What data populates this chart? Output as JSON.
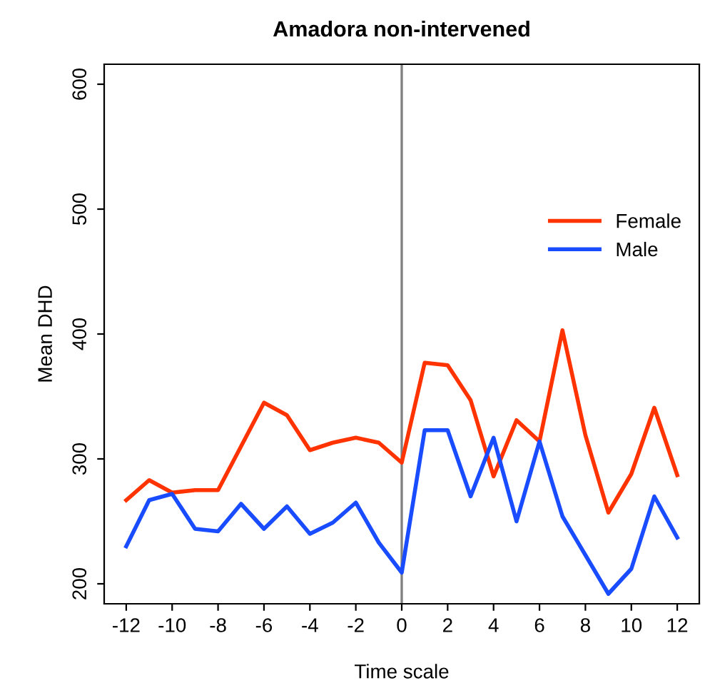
{
  "chart_data": {
    "type": "line",
    "title": "Amadora non-intervened",
    "xlabel": "Time scale",
    "ylabel": "Mean DHD",
    "x": [
      -12,
      -11,
      -10,
      -9,
      -8,
      -7,
      -6,
      -5,
      -4,
      -3,
      -2,
      -1,
      0,
      1,
      2,
      3,
      4,
      5,
      6,
      7,
      8,
      9,
      10,
      11,
      12
    ],
    "series": [
      {
        "name": "Female",
        "color": "#ff3300",
        "values": [
          267,
          283,
          273,
          275,
          275,
          310,
          345,
          335,
          307,
          313,
          317,
          313,
          297,
          377,
          375,
          347,
          286,
          331,
          314,
          403,
          319,
          257,
          288,
          341,
          287
        ]
      },
      {
        "name": "Male",
        "color": "#1a4cff",
        "values": [
          230,
          267,
          272,
          244,
          242,
          264,
          244,
          262,
          240,
          249,
          265,
          233,
          209,
          323,
          323,
          270,
          317,
          250,
          314,
          254,
          223,
          192,
          212,
          270,
          237
        ]
      }
    ],
    "xlim": [
      -12.96,
      12.96
    ],
    "ylim": [
      184,
      616
    ],
    "xticks": [
      -12,
      -10,
      -8,
      -6,
      -4,
      -2,
      0,
      2,
      4,
      6,
      8,
      10,
      12
    ],
    "yticks": [
      200,
      300,
      400,
      500,
      600
    ],
    "ref_lines": [
      {
        "axis": "x",
        "value": 0,
        "color": "#808080"
      }
    ],
    "grid": false,
    "legend": "right",
    "line_style": "solid",
    "marker": "none"
  }
}
